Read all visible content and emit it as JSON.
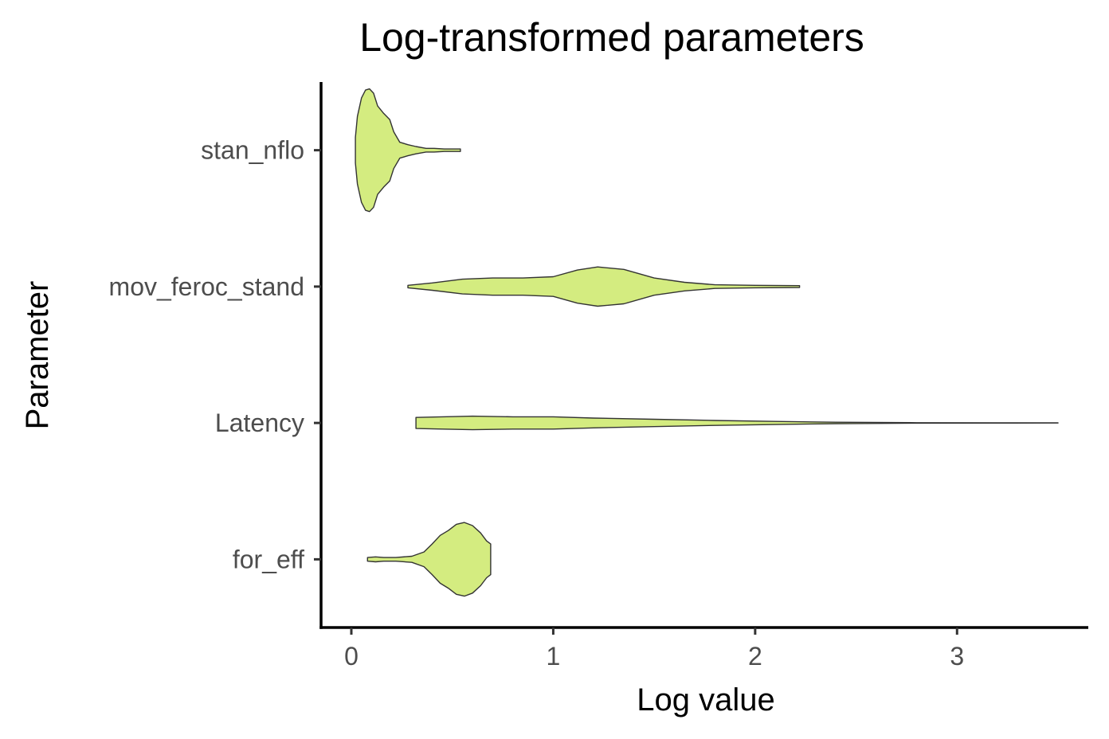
{
  "chart_data": {
    "type": "violin",
    "title": "Log-transformed parameters",
    "xlabel": "Log value",
    "ylabel": "Parameter",
    "xlim": [
      -0.15,
      3.65
    ],
    "x_ticks": [
      0,
      1,
      2,
      3
    ],
    "categories": [
      "stan_nflo",
      "mov_feroc_stand",
      "Latency",
      "for_eff"
    ],
    "fill_color": "#d4ec80",
    "stroke_color": "#333333",
    "grid": false,
    "legend": "none",
    "series": [
      {
        "category": "stan_nflo",
        "min": 0.02,
        "max": 0.54,
        "density": [
          [
            0.02,
            0.21
          ],
          [
            0.03,
            0.55
          ],
          [
            0.05,
            0.85
          ],
          [
            0.07,
            0.98
          ],
          [
            0.09,
            1.0
          ],
          [
            0.11,
            0.93
          ],
          [
            0.13,
            0.72
          ],
          [
            0.16,
            0.6
          ],
          [
            0.19,
            0.5
          ],
          [
            0.21,
            0.3
          ],
          [
            0.24,
            0.13
          ],
          [
            0.28,
            0.09
          ],
          [
            0.32,
            0.06
          ],
          [
            0.37,
            0.03
          ],
          [
            0.41,
            0.03
          ],
          [
            0.46,
            0.02
          ],
          [
            0.51,
            0.02
          ],
          [
            0.54,
            0.02
          ]
        ]
      },
      {
        "category": "mov_feroc_stand",
        "min": 0.28,
        "max": 2.22,
        "density": [
          [
            0.28,
            0.02
          ],
          [
            0.4,
            0.06
          ],
          [
            0.55,
            0.12
          ],
          [
            0.7,
            0.14
          ],
          [
            0.85,
            0.14
          ],
          [
            1.0,
            0.16
          ],
          [
            1.12,
            0.27
          ],
          [
            1.22,
            0.32
          ],
          [
            1.35,
            0.28
          ],
          [
            1.5,
            0.14
          ],
          [
            1.65,
            0.07
          ],
          [
            1.8,
            0.03
          ],
          [
            2.0,
            0.02
          ],
          [
            2.22,
            0.015
          ]
        ]
      },
      {
        "category": "Latency",
        "min": 0.32,
        "max": 3.5,
        "density": [
          [
            0.32,
            0.09
          ],
          [
            0.45,
            0.1
          ],
          [
            0.6,
            0.11
          ],
          [
            0.8,
            0.1
          ],
          [
            1.0,
            0.1
          ],
          [
            1.2,
            0.08
          ],
          [
            1.5,
            0.06
          ],
          [
            1.8,
            0.04
          ],
          [
            2.1,
            0.025
          ],
          [
            2.4,
            0.012
          ],
          [
            2.8,
            0.004
          ],
          [
            3.2,
            0.002
          ],
          [
            3.5,
            0.001
          ]
        ]
      },
      {
        "category": "for_eff",
        "min": 0.08,
        "max": 0.69,
        "density": [
          [
            0.08,
            0.03
          ],
          [
            0.12,
            0.04
          ],
          [
            0.16,
            0.03
          ],
          [
            0.22,
            0.03
          ],
          [
            0.3,
            0.05
          ],
          [
            0.36,
            0.12
          ],
          [
            0.4,
            0.25
          ],
          [
            0.44,
            0.39
          ],
          [
            0.48,
            0.47
          ],
          [
            0.52,
            0.57
          ],
          [
            0.56,
            0.6
          ],
          [
            0.6,
            0.55
          ],
          [
            0.64,
            0.43
          ],
          [
            0.67,
            0.3
          ],
          [
            0.69,
            0.25
          ]
        ]
      }
    ]
  }
}
